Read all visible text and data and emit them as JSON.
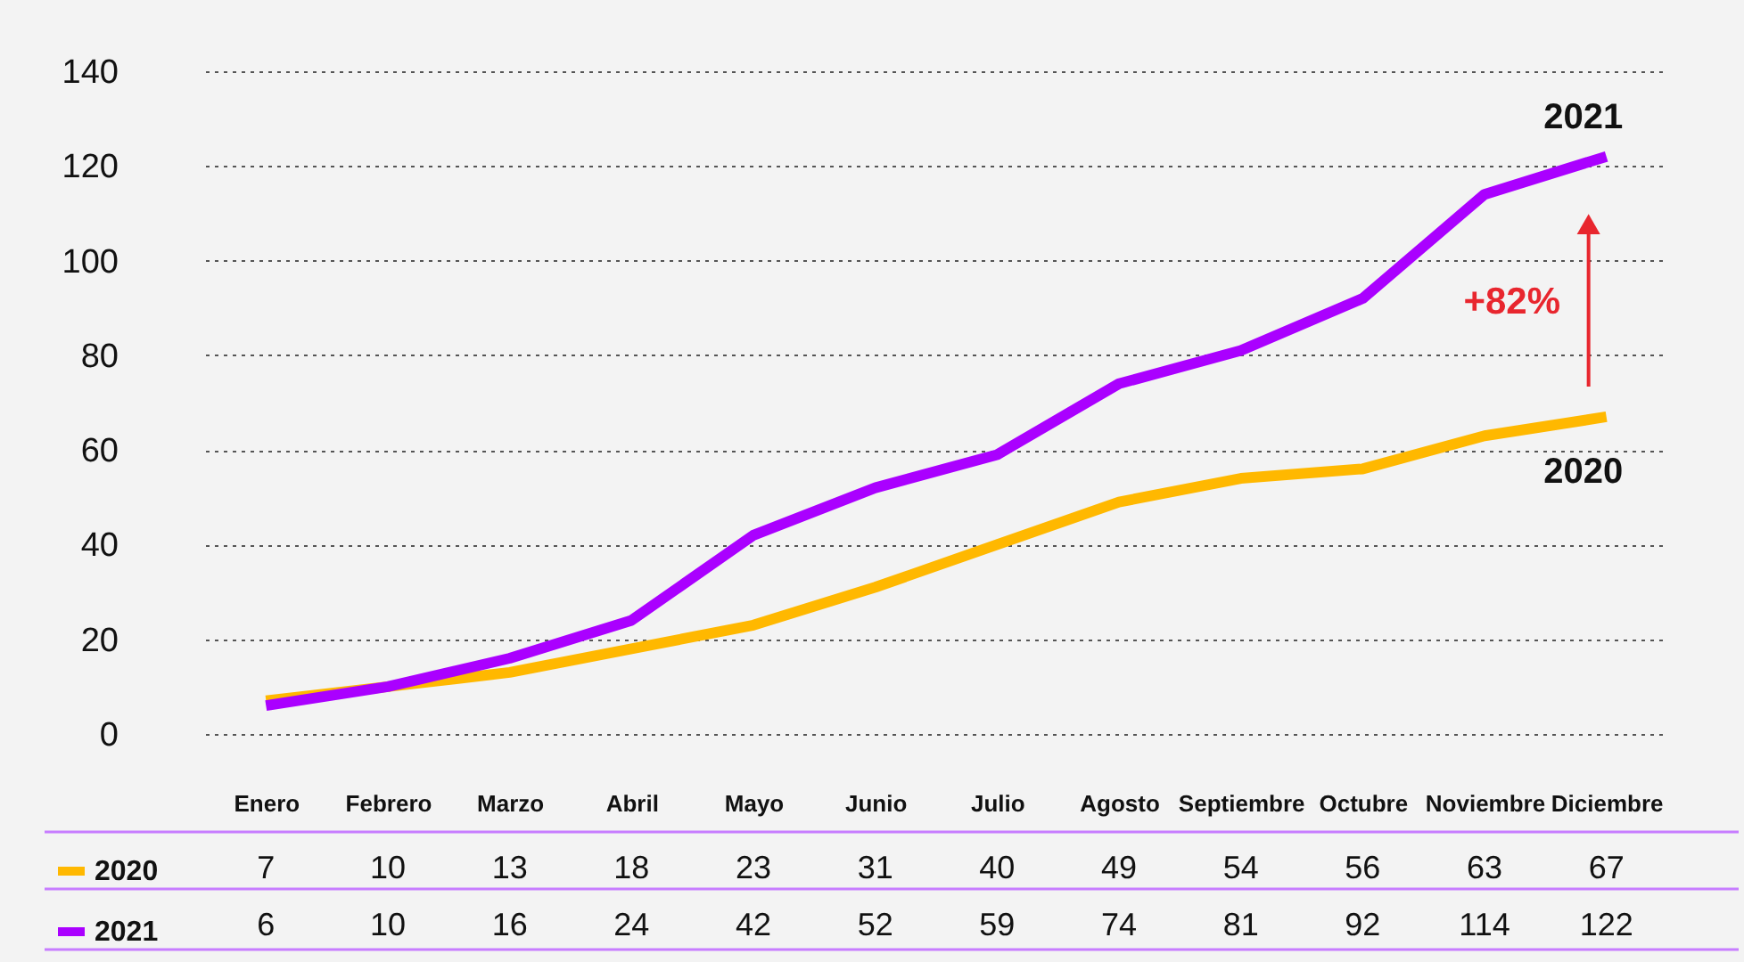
{
  "chart_data": {
    "type": "line",
    "categories": [
      "Enero",
      "Febrero",
      "Marzo",
      "Abril",
      "Mayo",
      "Junio",
      "Julio",
      "Agosto",
      "Septiembre",
      "Octubre",
      "Noviembre",
      "Diciembre"
    ],
    "series": [
      {
        "name": "2020",
        "color": "#ffb800",
        "values": [
          7,
          10,
          13,
          18,
          23,
          31,
          40,
          49,
          54,
          56,
          63,
          67
        ]
      },
      {
        "name": "2021",
        "color": "#aa00ff",
        "values": [
          6,
          10,
          16,
          24,
          42,
          52,
          59,
          74,
          81,
          92,
          114,
          122
        ]
      }
    ],
    "ylim": [
      0,
      140
    ],
    "yticks": [
      0,
      20,
      40,
      60,
      80,
      100,
      120,
      140
    ],
    "grid": "y",
    "legend": "bottom left",
    "data_labels": true,
    "line_style": "solid",
    "annotations": [
      "+82%"
    ]
  }
}
